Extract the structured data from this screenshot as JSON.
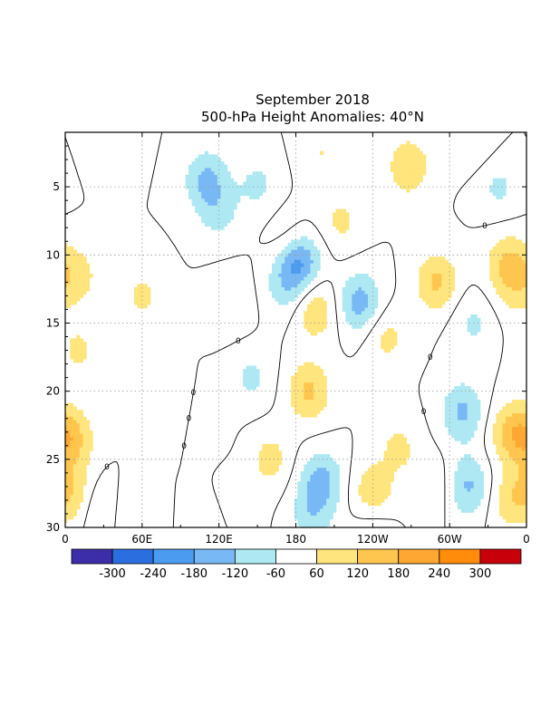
{
  "chart_data": {
    "type": "heatmap",
    "title": "September 2018",
    "subtitle": "500-hPa Height Anomalies: 40°N",
    "xlabel": "",
    "ylabel": "",
    "x_ticks": [
      {
        "lon": 0,
        "label": "0"
      },
      {
        "lon": 60,
        "label": "60E"
      },
      {
        "lon": 120,
        "label": "120E"
      },
      {
        "lon": 180,
        "label": "180"
      },
      {
        "lon": 240,
        "label": "120W"
      },
      {
        "lon": 300,
        "label": "60W"
      },
      {
        "lon": 360,
        "label": "0"
      }
    ],
    "y_ticks": [
      5,
      10,
      15,
      20,
      25,
      30
    ],
    "xlim": [
      0,
      360
    ],
    "ylim": [
      1,
      30
    ],
    "grid": true,
    "contour_line_label": "0",
    "colorbar": {
      "colors": [
        "#3c2ea8",
        "#2a6ee0",
        "#4b9cf0",
        "#78b8f5",
        "#aee9f3",
        "#ffffff",
        "#ffe57d",
        "#ffc64f",
        "#ffa733",
        "#ff8c0a",
        "#c8000a"
      ],
      "tick_labels": [
        "-300",
        "-240",
        "-180",
        "-120",
        "-60",
        "60",
        "120",
        "180",
        "240",
        "300"
      ],
      "levels": [
        -300,
        -240,
        -180,
        -120,
        -60,
        60,
        120,
        180,
        240,
        300
      ]
    },
    "anomaly_centers": [
      {
        "lon": 268,
        "day": 3.5,
        "value": 110
      },
      {
        "lon": 338,
        "day": 5,
        "value": -70
      },
      {
        "lon": 318,
        "day": 1.5,
        "value": 60
      },
      {
        "lon": 110,
        "day": 4.5,
        "value": -130
      },
      {
        "lon": 120,
        "day": 7,
        "value": -70
      },
      {
        "lon": 150,
        "day": 4.8,
        "value": -70
      },
      {
        "lon": 175,
        "day": 9,
        "value": 70
      },
      {
        "lon": 215,
        "day": 7.5,
        "value": 70
      },
      {
        "lon": 182,
        "day": 10.5,
        "value": -210
      },
      {
        "lon": 170,
        "day": 12.5,
        "value": -70
      },
      {
        "lon": 195,
        "day": 14,
        "value": 110
      },
      {
        "lon": 230,
        "day": 13.5,
        "value": -150
      },
      {
        "lon": 290,
        "day": 12,
        "value": 130
      },
      {
        "lon": 250,
        "day": 16,
        "value": 80
      },
      {
        "lon": 345,
        "day": 10.5,
        "value": 110
      },
      {
        "lon": 350,
        "day": 12.5,
        "value": 60
      },
      {
        "lon": 318,
        "day": 15,
        "value": -70
      },
      {
        "lon": 10,
        "day": 11.5,
        "value": 80
      },
      {
        "lon": 10,
        "day": 17,
        "value": 70
      },
      {
        "lon": 60,
        "day": 13,
        "value": 70
      },
      {
        "lon": 130,
        "day": 13.5,
        "value": 60
      },
      {
        "lon": 145,
        "day": 19,
        "value": -70
      },
      {
        "lon": 190,
        "day": 20,
        "value": 130
      },
      {
        "lon": 105,
        "day": 22.5,
        "value": -70
      },
      {
        "lon": 90,
        "day": 22,
        "value": 60
      },
      {
        "lon": 160,
        "day": 25,
        "value": 80
      },
      {
        "lon": 200,
        "day": 26.5,
        "value": -130
      },
      {
        "lon": 192,
        "day": 29,
        "value": -90
      },
      {
        "lon": 240,
        "day": 27.5,
        "value": 110
      },
      {
        "lon": 240,
        "day": 30,
        "value": -60
      },
      {
        "lon": 115,
        "day": 29.5,
        "value": -70
      },
      {
        "lon": 130,
        "day": 28.5,
        "value": 70
      },
      {
        "lon": 310,
        "day": 21.5,
        "value": -130
      },
      {
        "lon": 315,
        "day": 27,
        "value": -130
      },
      {
        "lon": 348,
        "day": 23,
        "value": 130
      },
      {
        "lon": 345,
        "day": 28,
        "value": 80
      },
      {
        "lon": 5,
        "day": 23.5,
        "value": 130
      },
      {
        "lon": 5,
        "day": 27.5,
        "value": 110
      },
      {
        "lon": 260,
        "day": 24,
        "value": 70
      },
      {
        "lon": 285,
        "day": 27,
        "value": 60
      },
      {
        "lon": 25,
        "day": 28.5,
        "value": -60
      },
      {
        "lon": 55,
        "day": 29,
        "value": 60
      },
      {
        "lon": 35,
        "day": 1.5,
        "value": 60
      },
      {
        "lon": 200,
        "day": 2.5,
        "value": 60
      }
    ]
  }
}
